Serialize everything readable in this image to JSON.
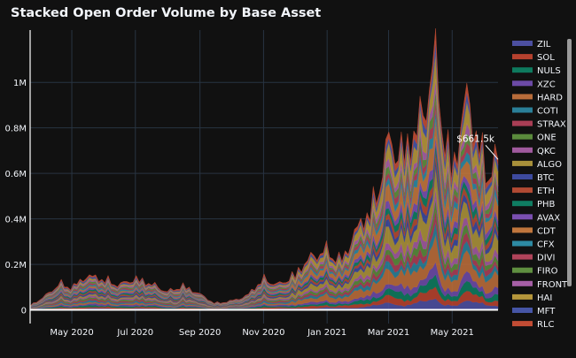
{
  "chart_data": {
    "type": "area",
    "stacked": true,
    "title": "Stacked Open Order Volume by Base Asset",
    "xlabel": "",
    "ylabel": "",
    "x_range": [
      "2020-03-22",
      "2021-06-14"
    ],
    "ylim": [
      -60000,
      1230000
    ],
    "grid": true,
    "legend_position": "right",
    "x_ticks": [
      {
        "date": "2020-05-01",
        "label": "May 2020"
      },
      {
        "date": "2020-07-01",
        "label": "Jul 2020"
      },
      {
        "date": "2020-09-01",
        "label": "Sep 2020"
      },
      {
        "date": "2020-11-01",
        "label": "Nov 2020"
      },
      {
        "date": "2021-01-01",
        "label": "Jan 2021"
      },
      {
        "date": "2021-03-01",
        "label": "Mar 2021"
      },
      {
        "date": "2021-05-01",
        "label": "May 2021"
      }
    ],
    "y_ticks": [
      {
        "value": 0,
        "label": "0"
      },
      {
        "value": 200000,
        "label": "0.2M"
      },
      {
        "value": 400000,
        "label": "0.4M"
      },
      {
        "value": 600000,
        "label": "0.6M"
      },
      {
        "value": 800000,
        "label": "0.8M"
      },
      {
        "value": 1000000,
        "label": "1M"
      }
    ],
    "total_series_approx": {
      "dates": [
        "2020-03-22",
        "2020-04-05",
        "2020-04-20",
        "2020-05-01",
        "2020-05-15",
        "2020-06-01",
        "2020-06-15",
        "2020-07-01",
        "2020-07-15",
        "2020-08-01",
        "2020-08-15",
        "2020-09-01",
        "2020-09-15",
        "2020-10-01",
        "2020-10-15",
        "2020-11-01",
        "2020-11-15",
        "2020-12-01",
        "2020-12-15",
        "2021-01-01",
        "2021-01-15",
        "2021-02-01",
        "2021-02-15",
        "2021-03-01",
        "2021-03-15",
        "2021-04-01",
        "2021-04-15",
        "2021-04-25",
        "2021-05-01",
        "2021-05-15",
        "2021-06-01",
        "2021-06-14"
      ],
      "values": [
        20000,
        60000,
        120000,
        100000,
        150000,
        140000,
        110000,
        140000,
        120000,
        80000,
        110000,
        70000,
        30000,
        40000,
        60000,
        140000,
        110000,
        160000,
        230000,
        270000,
        220000,
        380000,
        480000,
        750000,
        700000,
        850000,
        1120000,
        750000,
        620000,
        950000,
        650000,
        661500
      ]
    },
    "annotation": {
      "label": "$661.5k",
      "date": "2021-06-14",
      "value": 661500
    },
    "series": [
      {
        "name": "ZIL",
        "color": "#4c4fa0"
      },
      {
        "name": "SOL",
        "color": "#b5412e"
      },
      {
        "name": "NULS",
        "color": "#0e7a5e"
      },
      {
        "name": "XZC",
        "color": "#6c4aa6"
      },
      {
        "name": "HARD",
        "color": "#b86c3a"
      },
      {
        "name": "COTI",
        "color": "#2a7f98"
      },
      {
        "name": "STRAX",
        "color": "#a93e55"
      },
      {
        "name": "ONE",
        "color": "#5a8a3c"
      },
      {
        "name": "QKC",
        "color": "#a05a9e"
      },
      {
        "name": "ALGO",
        "color": "#a8903a"
      },
      {
        "name": "BTC",
        "color": "#3d4a9e"
      },
      {
        "name": "ETH",
        "color": "#b14a33"
      },
      {
        "name": "PHB",
        "color": "#0f7d62"
      },
      {
        "name": "AVAX",
        "color": "#7a4fb0"
      },
      {
        "name": "CDT",
        "color": "#c0763d"
      },
      {
        "name": "CFX",
        "color": "#2d8aa3"
      },
      {
        "name": "DIVI",
        "color": "#b0435a"
      },
      {
        "name": "FIRO",
        "color": "#5f8f40"
      },
      {
        "name": "FRONT",
        "color": "#a65fa6"
      },
      {
        "name": "HAI",
        "color": "#b5963b"
      },
      {
        "name": "MFT",
        "color": "#4655a6"
      },
      {
        "name": "RLC",
        "color": "#c24c34"
      }
    ]
  }
}
